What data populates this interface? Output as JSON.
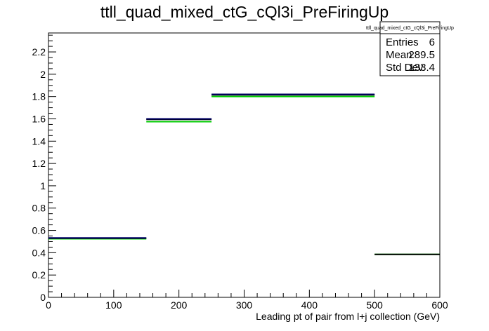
{
  "chart_data": {
    "type": "step",
    "title": "ttll_quad_mixed_ctG_cQl3i_PreFiringUp",
    "xlabel": "Leading pt of pair from l+j collection (GeV)",
    "ylabel": "",
    "xlim": [
      0,
      600
    ],
    "ylim": [
      0,
      2.37
    ],
    "x_ticks": [
      0,
      100,
      200,
      300,
      400,
      500,
      600
    ],
    "x_tick_labels": [
      "0",
      "100",
      "200",
      "300",
      "400",
      "500",
      "600"
    ],
    "y_ticks": [
      0,
      0.2,
      0.4,
      0.6,
      0.8,
      1,
      1.2,
      1.4,
      1.6,
      1.8,
      2,
      2.2
    ],
    "y_tick_labels": [
      "0",
      "0.2",
      "0.4",
      "0.6",
      "0.8",
      "1",
      "1.2",
      "1.4",
      "1.6",
      "1.8",
      "2",
      "2.2"
    ],
    "grid": false,
    "series": [
      {
        "color": "#00cc00",
        "bins": [
          {
            "x0": 0,
            "x1": 150,
            "y": 0.525
          },
          {
            "x0": 150,
            "x1": 250,
            "y": 1.575
          },
          {
            "x0": 250,
            "x1": 500,
            "y": 1.8
          },
          {
            "x0": 500,
            "x1": 600,
            "y": 0.385
          }
        ]
      },
      {
        "color": "#000000",
        "bins": [
          {
            "x0": 0,
            "x1": 150,
            "y": 0.53
          },
          {
            "x0": 150,
            "x1": 250,
            "y": 1.595
          },
          {
            "x0": 250,
            "x1": 500,
            "y": 1.815
          },
          {
            "x0": 500,
            "x1": 600,
            "y": 0.385
          }
        ]
      },
      {
        "color": "#000066",
        "bins": [
          {
            "x0": 0,
            "x1": 150,
            "y": 0.533
          },
          {
            "x0": 150,
            "x1": 250,
            "y": 1.6
          },
          {
            "x0": 250,
            "x1": 500,
            "y": 1.82
          }
        ]
      }
    ],
    "stats_box": {
      "title": "ttll_quad_mixed_ctG_cQl3i_PreFiringUp",
      "rows": [
        {
          "label": "Entries",
          "value": "6"
        },
        {
          "label": "Mean",
          "value": "289.5"
        },
        {
          "label": "Std Dev",
          "value": "133.4"
        }
      ]
    }
  }
}
